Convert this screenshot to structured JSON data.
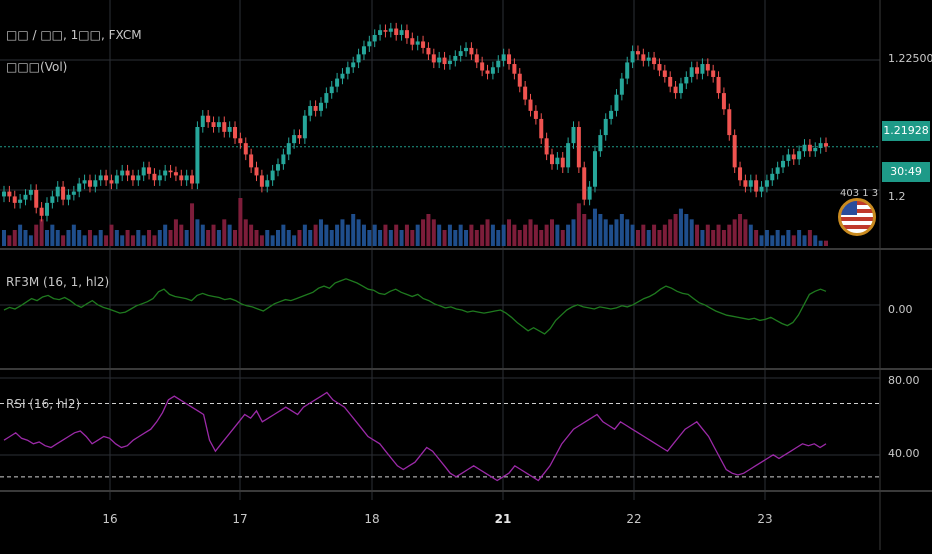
{
  "header": {
    "symbol_title": "□□ / □□, 1□□, FXCM",
    "volume_title": "□□□(Vol)"
  },
  "indicators": {
    "rf3m_label": "RF3M (16, 1, hl2)",
    "rsi_label": "RSI (16, hl2)"
  },
  "price_axis": {
    "labels": [
      "1.22500",
      "0.00",
      "80.00",
      "40.00"
    ],
    "partial_label": "1.2"
  },
  "badges": {
    "last_price": "1.21928",
    "countdown": "30:49"
  },
  "overlay": {
    "counter_text": "403 1 3"
  },
  "time_axis": {
    "labels": [
      "16",
      "17",
      "18",
      "21",
      "22",
      "23"
    ]
  },
  "colors": {
    "up": "#26a69a",
    "down": "#ef5350",
    "vol_up": "#1f4e8c",
    "vol_down": "#7d1d3a",
    "rf3m": "#1f7a1f",
    "rsi": "#9c2aa8",
    "grid": "#2c2f36",
    "badge": "#1e9a88"
  },
  "chart_data": [
    {
      "type": "candlestick",
      "title": "□□ / □□, 1□□, FXCM",
      "ylim": [
        1.2135,
        1.2275
      ],
      "price_ticks": [
        1.225,
        1.21928
      ],
      "days": [
        "16",
        "17",
        "18",
        "21",
        "22",
        "23"
      ],
      "closes": [
        1.2165,
        1.2162,
        1.2158,
        1.216,
        1.2163,
        1.2166,
        1.2155,
        1.215,
        1.2158,
        1.2162,
        1.2168,
        1.216,
        1.2163,
        1.2165,
        1.217,
        1.2172,
        1.2168,
        1.2172,
        1.2175,
        1.2172,
        1.217,
        1.2175,
        1.2178,
        1.2175,
        1.2172,
        1.2175,
        1.218,
        1.2176,
        1.2172,
        1.2175,
        1.2178,
        1.2177,
        1.2175,
        1.2172,
        1.2175,
        1.217,
        1.2205,
        1.2212,
        1.2208,
        1.2205,
        1.2208,
        1.2202,
        1.2205,
        1.2198,
        1.2195,
        1.2188,
        1.218,
        1.2175,
        1.2168,
        1.2172,
        1.2178,
        1.2182,
        1.2188,
        1.2195,
        1.22,
        1.2198,
        1.2212,
        1.2218,
        1.2215,
        1.222,
        1.2226,
        1.223,
        1.2235,
        1.2238,
        1.2242,
        1.2245,
        1.225,
        1.2255,
        1.2258,
        1.2262,
        1.2265,
        1.2264,
        1.2266,
        1.2262,
        1.2265,
        1.226,
        1.2256,
        1.2258,
        1.2254,
        1.225,
        1.2245,
        1.2248,
        1.2244,
        1.2246,
        1.2249,
        1.2252,
        1.2254,
        1.225,
        1.2245,
        1.224,
        1.2238,
        1.2242,
        1.2246,
        1.225,
        1.2244,
        1.2238,
        1.223,
        1.2222,
        1.2215,
        1.221,
        1.2198,
        1.2188,
        1.2182,
        1.2186,
        1.218,
        1.2195,
        1.2205,
        1.218,
        1.216,
        1.2168,
        1.219,
        1.22,
        1.221,
        1.2215,
        1.2225,
        1.2235,
        1.2245,
        1.2252,
        1.225,
        1.2246,
        1.2248,
        1.2244,
        1.224,
        1.2236,
        1.223,
        1.2226,
        1.2232,
        1.2236,
        1.2242,
        1.2238,
        1.2244,
        1.224,
        1.2236,
        1.2226,
        1.2216,
        1.22,
        1.218,
        1.2172,
        1.2168,
        1.2172,
        1.2165,
        1.2168,
        1.2172,
        1.2176,
        1.218,
        1.2184,
        1.2188,
        1.2185,
        1.219,
        1.2194,
        1.219,
        1.2192,
        1.2195,
        1.2193
      ],
      "volume": [
        3,
        2,
        3,
        4,
        3,
        2,
        4,
        5,
        3,
        4,
        3,
        2,
        3,
        4,
        3,
        2,
        3,
        2,
        3,
        2,
        4,
        3,
        2,
        3,
        2,
        3,
        2,
        3,
        2,
        3,
        4,
        3,
        5,
        4,
        3,
        8,
        5,
        4,
        3,
        4,
        3,
        5,
        4,
        3,
        9,
        5,
        4,
        3,
        2,
        3,
        2,
        3,
        4,
        3,
        2,
        3,
        4,
        3,
        4,
        5,
        4,
        3,
        4,
        5,
        4,
        6,
        5,
        4,
        3,
        4,
        3,
        4,
        3,
        4,
        3,
        4,
        3,
        4,
        5,
        6,
        5,
        4,
        3,
        4,
        3,
        4,
        3,
        4,
        3,
        4,
        5,
        4,
        3,
        4,
        5,
        4,
        3,
        4,
        5,
        4,
        3,
        4,
        5,
        4,
        3,
        4,
        5,
        8,
        6,
        5,
        7,
        6,
        5,
        4,
        5,
        6,
        5,
        4,
        3,
        4,
        3,
        4,
        3,
        4,
        5,
        6,
        7,
        6,
        5,
        4,
        3,
        4,
        3,
        4,
        3,
        4,
        5,
        6,
        5,
        4,
        3,
        2,
        3,
        2,
        3,
        2,
        3,
        2,
        3,
        2,
        3,
        2
      ]
    },
    {
      "type": "line",
      "title": "RF3M (16, 1, hl2)",
      "zero_line": "0.00",
      "ylim": [
        -1.0,
        1.0
      ],
      "values": [
        0.0,
        0.05,
        0.02,
        0.08,
        0.15,
        0.22,
        0.18,
        0.25,
        0.28,
        0.22,
        0.2,
        0.24,
        0.18,
        0.1,
        0.05,
        0.12,
        0.18,
        0.1,
        0.05,
        0.02,
        -0.02,
        -0.06,
        -0.04,
        0.02,
        0.08,
        0.12,
        0.16,
        0.22,
        0.35,
        0.4,
        0.3,
        0.26,
        0.24,
        0.22,
        0.18,
        0.28,
        0.32,
        0.28,
        0.26,
        0.24,
        0.2,
        0.22,
        0.18,
        0.12,
        0.08,
        0.06,
        0.02,
        -0.02,
        0.05,
        0.12,
        0.16,
        0.2,
        0.18,
        0.22,
        0.26,
        0.3,
        0.34,
        0.42,
        0.46,
        0.42,
        0.52,
        0.56,
        0.6,
        0.56,
        0.52,
        0.46,
        0.4,
        0.38,
        0.32,
        0.3,
        0.36,
        0.4,
        0.34,
        0.3,
        0.26,
        0.3,
        0.22,
        0.18,
        0.12,
        0.08,
        0.04,
        0.06,
        0.02,
        0.0,
        -0.04,
        -0.02,
        -0.04,
        -0.06,
        -0.04,
        -0.02,
        0.0,
        -0.06,
        -0.14,
        -0.24,
        -0.32,
        -0.4,
        -0.34,
        -0.4,
        -0.46,
        -0.36,
        -0.2,
        -0.1,
        0.0,
        0.06,
        0.1,
        0.06,
        0.04,
        0.02,
        0.06,
        0.04,
        0.02,
        0.04,
        0.08,
        0.06,
        0.1,
        0.16,
        0.22,
        0.26,
        0.32,
        0.4,
        0.46,
        0.42,
        0.36,
        0.32,
        0.3,
        0.22,
        0.14,
        0.1,
        0.04,
        -0.02,
        -0.06,
        -0.1,
        -0.12,
        -0.14,
        -0.16,
        -0.18,
        -0.16,
        -0.2,
        -0.18,
        -0.14,
        -0.2,
        -0.26,
        -0.3,
        -0.24,
        -0.1,
        0.1,
        0.3,
        0.36,
        0.4,
        0.36
      ]
    },
    {
      "type": "line",
      "title": "RSI (16, hl2)",
      "ylim": [
        25,
        85
      ],
      "reference_lines": [
        70,
        30
      ],
      "values": [
        50,
        52,
        54,
        51,
        50,
        48,
        49,
        47,
        46,
        48,
        50,
        52,
        54,
        55,
        52,
        48,
        50,
        52,
        51,
        48,
        46,
        47,
        50,
        52,
        54,
        56,
        60,
        65,
        72,
        74,
        72,
        70,
        68,
        66,
        64,
        50,
        44,
        48,
        52,
        56,
        60,
        64,
        62,
        66,
        60,
        62,
        64,
        66,
        68,
        66,
        64,
        68,
        70,
        72,
        74,
        76,
        72,
        70,
        68,
        64,
        60,
        56,
        52,
        50,
        48,
        44,
        40,
        36,
        34,
        36,
        38,
        42,
        46,
        44,
        40,
        36,
        32,
        30,
        32,
        34,
        36,
        34,
        32,
        30,
        28,
        30,
        32,
        36,
        34,
        32,
        30,
        28,
        32,
        36,
        42,
        48,
        52,
        56,
        58,
        60,
        62,
        64,
        60,
        58,
        56,
        60,
        58,
        56,
        54,
        52,
        50,
        48,
        46,
        44,
        48,
        52,
        56,
        58,
        60,
        56,
        52,
        46,
        40,
        34,
        32,
        31,
        32,
        34,
        36,
        38,
        40,
        42,
        40,
        42,
        44,
        46,
        48,
        47,
        48,
        46,
        48
      ]
    }
  ]
}
